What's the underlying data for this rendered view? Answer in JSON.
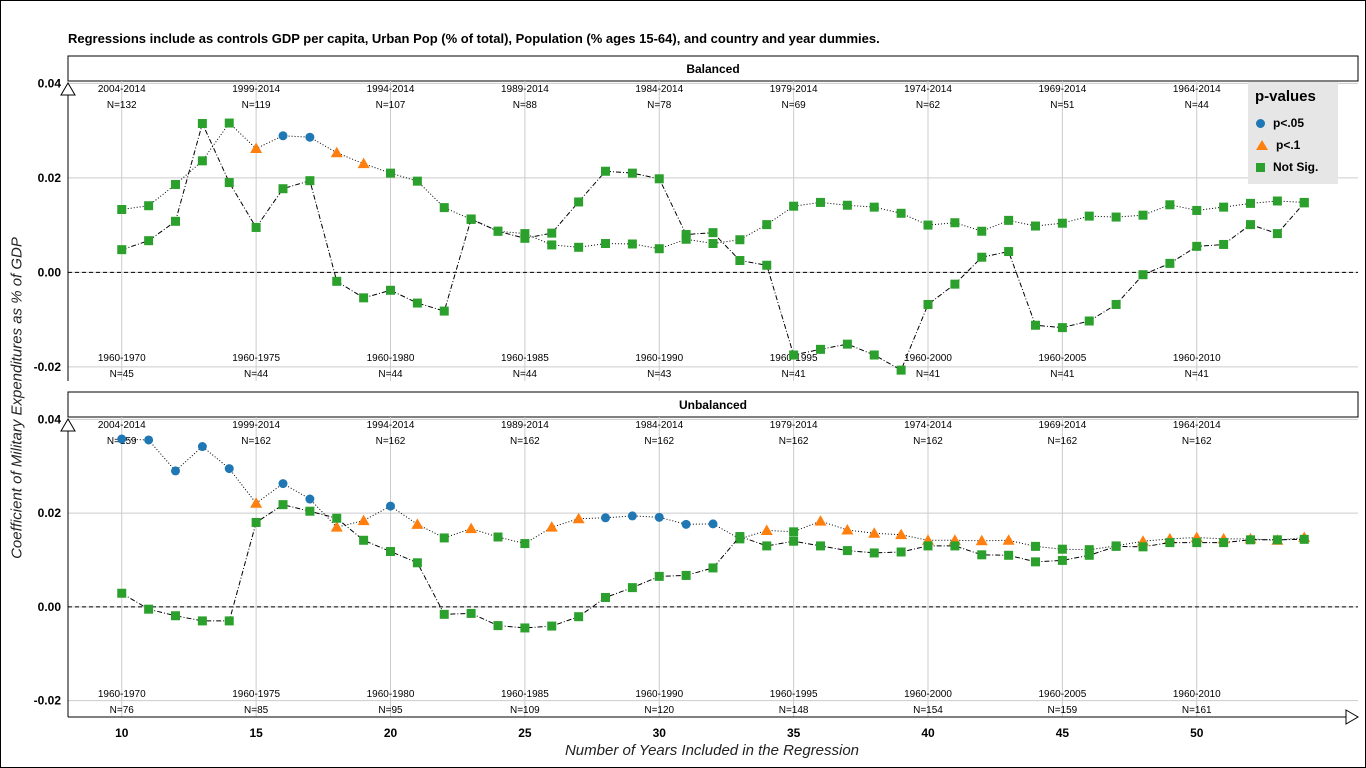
{
  "title": "Regressions include as controls GDP per capita, Urban Pop (% of total), Population (% ages 15-64), and country and year dummies.",
  "ylabel": "Coefficient of Military Expenditures as % of GDP",
  "xlabel": "Number of Years Included in the Regression",
  "legend": {
    "title": "p-values",
    "items": [
      {
        "label": "p<.05",
        "color": "#1f77b4",
        "shape": "circle"
      },
      {
        "label": "p<.1",
        "color": "#ff7f0e",
        "shape": "triangle"
      },
      {
        "label": "Not Sig.",
        "color": "#2ca02c",
        "shape": "square"
      }
    ]
  },
  "chart_data": [
    {
      "type": "scatter",
      "panel": "Balanced",
      "xlim": [
        8.0,
        56.0
      ],
      "ylim": [
        -0.023,
        0.0405
      ],
      "yticks": [
        "0.04",
        "0.02",
        "0.00",
        "-0.02"
      ],
      "ytick_values": [
        0.04,
        0.02,
        0.0,
        -0.02
      ],
      "xticks": [
        10,
        15,
        20,
        25,
        30,
        35,
        40,
        45,
        50
      ],
      "top_labels": [
        {
          "x": 10,
          "period": "2004-2014",
          "n": "N=132"
        },
        {
          "x": 15,
          "period": "1999-2014",
          "n": "N=119"
        },
        {
          "x": 20,
          "period": "1994-2014",
          "n": "N=107"
        },
        {
          "x": 25,
          "period": "1989-2014",
          "n": "N=88"
        },
        {
          "x": 30,
          "period": "1984-2014",
          "n": "N=78"
        },
        {
          "x": 35,
          "period": "1979-2014",
          "n": "N=69"
        },
        {
          "x": 40,
          "period": "1974-2014",
          "n": "N=62"
        },
        {
          "x": 45,
          "period": "1969-2014",
          "n": "N=51"
        },
        {
          "x": 50,
          "period": "1964-2014",
          "n": "N=44"
        }
      ],
      "bottom_labels": [
        {
          "x": 10,
          "period": "1960-1970",
          "n": "N=45"
        },
        {
          "x": 15,
          "period": "1960-1975",
          "n": "N=44"
        },
        {
          "x": 20,
          "period": "1960-1980",
          "n": "N=44"
        },
        {
          "x": 25,
          "period": "1960-1985",
          "n": "N=44"
        },
        {
          "x": 30,
          "period": "1960-1990",
          "n": "N=43"
        },
        {
          "x": 35,
          "period": "1960-1995",
          "n": "N=41"
        },
        {
          "x": 40,
          "period": "1960-2000",
          "n": "N=41"
        },
        {
          "x": 45,
          "period": "1960-2005",
          "n": "N=41"
        },
        {
          "x": 50,
          "period": "1960-2010",
          "n": "N=41"
        }
      ],
      "series": [
        {
          "x": [
            10,
            11,
            12,
            13,
            14,
            15,
            16,
            17,
            18,
            19,
            20,
            21,
            22,
            23,
            24,
            25,
            26,
            27,
            28,
            29,
            30,
            31,
            32,
            33,
            34,
            35,
            36,
            37,
            38,
            39,
            40,
            41,
            42,
            43,
            44,
            45,
            46,
            47,
            48,
            49,
            50,
            51,
            52,
            53,
            54
          ],
          "y": [
            0.0133,
            0.0141,
            0.0186,
            0.0236,
            0.0316,
            0.0262,
            0.0289,
            0.0286,
            0.0253,
            0.023,
            0.021,
            0.0193,
            0.0137,
            0.0112,
            0.0087,
            0.0082,
            0.0058,
            0.0053,
            0.0061,
            0.006,
            0.005,
            0.007,
            0.0061,
            0.0069,
            0.0101,
            0.014,
            0.0148,
            0.0142,
            0.0138,
            0.0125,
            0.01,
            0.0105,
            0.0087,
            0.011,
            0.0098,
            0.0104,
            0.0119,
            0.0117,
            0.0121,
            0.0143,
            0.0131,
            0.0138,
            0.0146,
            0.0151,
            0.0148
          ],
          "sig": [
            "ns",
            "ns",
            "ns",
            "ns",
            "ns",
            "p10",
            "p05",
            "p05",
            "p10",
            "p10",
            "ns",
            "ns",
            "ns",
            "ns",
            "ns",
            "ns",
            "ns",
            "ns",
            "ns",
            "ns",
            "ns",
            "ns",
            "ns",
            "ns",
            "ns",
            "ns",
            "ns",
            "ns",
            "ns",
            "ns",
            "ns",
            "ns",
            "ns",
            "ns",
            "ns",
            "ns",
            "ns",
            "ns",
            "ns",
            "ns",
            "ns",
            "ns",
            "ns",
            "ns",
            "ns"
          ]
        },
        {
          "x": [
            10,
            11,
            12,
            13,
            14,
            15,
            16,
            17,
            18,
            19,
            20,
            21,
            22,
            23,
            24,
            25,
            26,
            27,
            28,
            29,
            30,
            31,
            32,
            33,
            34,
            35,
            36,
            37,
            38,
            39,
            40,
            41,
            42,
            43,
            44,
            45,
            46,
            47,
            48,
            49,
            50,
            51,
            52,
            53,
            54
          ],
          "y": [
            0.0048,
            0.0067,
            0.0108,
            0.0315,
            0.019,
            0.0095,
            0.0177,
            0.0194,
            -0.0019,
            -0.0054,
            -0.0038,
            -0.0065,
            -0.0082,
            0.0113,
            0.0087,
            0.0072,
            0.0083,
            0.0149,
            0.0214,
            0.021,
            0.0198,
            0.008,
            0.0084,
            0.0025,
            0.0015,
            -0.0175,
            -0.0163,
            -0.0152,
            -0.0175,
            -0.0207,
            -0.0068,
            -0.0025,
            0.0032,
            0.0044,
            -0.0112,
            -0.0117,
            -0.0103,
            -0.0068,
            -0.0005,
            0.0019,
            0.0055,
            0.0059,
            0.0101,
            0.0082,
            0.0147
          ],
          "sig": [
            "ns",
            "ns",
            "ns",
            "ns",
            "ns",
            "ns",
            "ns",
            "ns",
            "ns",
            "ns",
            "ns",
            "ns",
            "ns",
            "ns",
            "ns",
            "ns",
            "ns",
            "ns",
            "ns",
            "ns",
            "ns",
            "ns",
            "ns",
            "ns",
            "ns",
            "ns",
            "ns",
            "ns",
            "ns",
            "ns",
            "ns",
            "ns",
            "ns",
            "ns",
            "ns",
            "ns",
            "ns",
            "ns",
            "ns",
            "ns",
            "ns",
            "ns",
            "ns",
            "ns",
            "ns"
          ]
        }
      ]
    },
    {
      "type": "scatter",
      "panel": "Unbalanced",
      "xlim": [
        8.0,
        56.0
      ],
      "ylim": [
        -0.0235,
        0.0405
      ],
      "yticks": [
        "0.04",
        "0.02",
        "0.00",
        "-0.02"
      ],
      "ytick_values": [
        0.04,
        0.02,
        0.0,
        -0.02
      ],
      "xticks": [
        10,
        15,
        20,
        25,
        30,
        35,
        40,
        45,
        50
      ],
      "top_labels": [
        {
          "x": 10,
          "period": "2004-2014",
          "n": "N=159"
        },
        {
          "x": 15,
          "period": "1999-2014",
          "n": "N=162"
        },
        {
          "x": 20,
          "period": "1994-2014",
          "n": "N=162"
        },
        {
          "x": 25,
          "period": "1989-2014",
          "n": "N=162"
        },
        {
          "x": 30,
          "period": "1984-2014",
          "n": "N=162"
        },
        {
          "x": 35,
          "period": "1979-2014",
          "n": "N=162"
        },
        {
          "x": 40,
          "period": "1974-2014",
          "n": "N=162"
        },
        {
          "x": 45,
          "period": "1969-2014",
          "n": "N=162"
        },
        {
          "x": 50,
          "period": "1964-2014",
          "n": "N=162"
        }
      ],
      "bottom_labels": [
        {
          "x": 10,
          "period": "1960-1970",
          "n": "N=76"
        },
        {
          "x": 15,
          "period": "1960-1975",
          "n": "N=85"
        },
        {
          "x": 20,
          "period": "1960-1980",
          "n": "N=95"
        },
        {
          "x": 25,
          "period": "1960-1985",
          "n": "N=109"
        },
        {
          "x": 30,
          "period": "1960-1990",
          "n": "N=120"
        },
        {
          "x": 35,
          "period": "1960-1995",
          "n": "N=148"
        },
        {
          "x": 40,
          "period": "1960-2000",
          "n": "N=154"
        },
        {
          "x": 45,
          "period": "1960-2005",
          "n": "N=159"
        },
        {
          "x": 50,
          "period": "1960-2010",
          "n": "N=161"
        }
      ],
      "series": [
        {
          "x": [
            10,
            11,
            12,
            13,
            14,
            15,
            16,
            17,
            18,
            19,
            20,
            21,
            22,
            23,
            24,
            25,
            26,
            27,
            28,
            29,
            30,
            31,
            32,
            33,
            34,
            35,
            36,
            37,
            38,
            39,
            40,
            41,
            42,
            43,
            44,
            45,
            46,
            47,
            48,
            49,
            50,
            51,
            52,
            53,
            54
          ],
          "y": [
            0.0358,
            0.0356,
            0.029,
            0.0342,
            0.0295,
            0.0221,
            0.0263,
            0.023,
            0.017,
            0.0184,
            0.0215,
            0.0176,
            0.0147,
            0.0167,
            0.0149,
            0.0135,
            0.017,
            0.0188,
            0.019,
            0.0194,
            0.0191,
            0.0176,
            0.0177,
            0.0145,
            0.0163,
            0.016,
            0.0183,
            0.0164,
            0.0157,
            0.0154,
            0.0142,
            0.0142,
            0.0141,
            0.0142,
            0.0129,
            0.0123,
            0.0122,
            0.013,
            0.014,
            0.0145,
            0.0148,
            0.0145,
            0.0145,
            0.0142,
            0.0148
          ],
          "sig": [
            "p05",
            "p05",
            "p05",
            "p05",
            "p05",
            "p10",
            "p05",
            "p05",
            "p10",
            "p10",
            "p05",
            "p10",
            "ns",
            "p10",
            "ns",
            "ns",
            "p10",
            "p10",
            "p05",
            "p05",
            "p05",
            "p05",
            "p05",
            "ns",
            "p10",
            "ns",
            "p10",
            "p10",
            "p10",
            "p10",
            "p10",
            "p10",
            "p10",
            "p10",
            "ns",
            "ns",
            "ns",
            "ns",
            "p10",
            "p10",
            "p10",
            "p10",
            "p10",
            "p10",
            "p10"
          ]
        },
        {
          "x": [
            10,
            11,
            12,
            13,
            14,
            15,
            16,
            17,
            18,
            19,
            20,
            21,
            22,
            23,
            24,
            25,
            26,
            27,
            28,
            29,
            30,
            31,
            32,
            33,
            34,
            35,
            36,
            37,
            38,
            39,
            40,
            41,
            42,
            43,
            44,
            45,
            46,
            47,
            48,
            49,
            50,
            51,
            52,
            53,
            54
          ],
          "y": [
            0.0029,
            -0.0005,
            -0.0019,
            -0.003,
            -0.003,
            0.018,
            0.0218,
            0.0204,
            0.0189,
            0.0142,
            0.0118,
            0.0094,
            -0.0016,
            -0.0014,
            -0.004,
            -0.0045,
            -0.0041,
            -0.0021,
            0.002,
            0.0041,
            0.0065,
            0.0067,
            0.0083,
            0.015,
            0.013,
            0.014,
            0.013,
            0.012,
            0.0115,
            0.0117,
            0.013,
            0.013,
            0.0111,
            0.011,
            0.0096,
            0.0099,
            0.011,
            0.0129,
            0.0128,
            0.0137,
            0.0137,
            0.0137,
            0.0143,
            0.0143,
            0.0144
          ],
          "sig": [
            "ns",
            "ns",
            "ns",
            "ns",
            "ns",
            "ns",
            "ns",
            "ns",
            "ns",
            "ns",
            "ns",
            "ns",
            "ns",
            "ns",
            "ns",
            "ns",
            "ns",
            "ns",
            "ns",
            "ns",
            "ns",
            "ns",
            "ns",
            "ns",
            "ns",
            "ns",
            "ns",
            "ns",
            "ns",
            "ns",
            "ns",
            "ns",
            "ns",
            "ns",
            "ns",
            "ns",
            "ns",
            "ns",
            "ns",
            "ns",
            "ns",
            "ns",
            "ns",
            "ns",
            "ns"
          ]
        }
      ]
    }
  ]
}
